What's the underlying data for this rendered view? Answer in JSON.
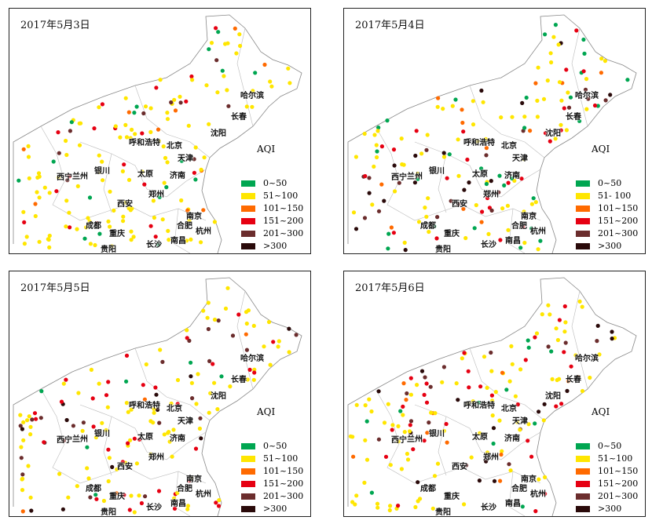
{
  "aqi_legend": {
    "title": "AQI",
    "categories": [
      {
        "label": "0~50",
        "color": "#00a651"
      },
      {
        "label": "51~100",
        "color": "#ffe600"
      },
      {
        "label": "101~150",
        "color": "#ff6a00"
      },
      {
        "label": "151~200",
        "color": "#e60012"
      },
      {
        "label": "201~300",
        "color": "#6b2d2d"
      },
      {
        "label": ">300",
        "color": "#2a0a0a"
      }
    ],
    "panel2_second_label": "51- 100"
  },
  "cities": {
    "xining": "西宁",
    "lanzhou": "兰州",
    "yinchuan": "银川",
    "hohhot": "呼和浩特",
    "beijing": "北京",
    "tianjin": "天津",
    "taiyuan": "太原",
    "jinan": "济南",
    "zhengzhou": "郑州",
    "xian": "西安",
    "chengdu": "成都",
    "chongqing": "重庆",
    "guiyang": "贵阳",
    "changsha": "长沙",
    "nanchang": "南昌",
    "hefei": "合肥",
    "hangzhou": "杭州",
    "nanjing": "南京",
    "shenyang": "沈阳",
    "changchun": "长春",
    "harbin": "哈尔滨"
  },
  "panels": [
    {
      "date": "2017年5月3日",
      "dominant_level": 1,
      "mix": [
        0.12,
        0.68,
        0.05,
        0.1,
        0.05,
        0.0
      ]
    },
    {
      "date": "2017年5月4日",
      "dominant_level": 1,
      "mix": [
        0.18,
        0.45,
        0.07,
        0.12,
        0.1,
        0.08
      ]
    },
    {
      "date": "2017年5月5日",
      "dominant_level": 1,
      "mix": [
        0.03,
        0.5,
        0.05,
        0.2,
        0.12,
        0.1
      ]
    },
    {
      "date": "2017年5月6日",
      "dominant_level": 1,
      "mix": [
        0.05,
        0.5,
        0.06,
        0.2,
        0.1,
        0.09
      ]
    }
  ]
}
